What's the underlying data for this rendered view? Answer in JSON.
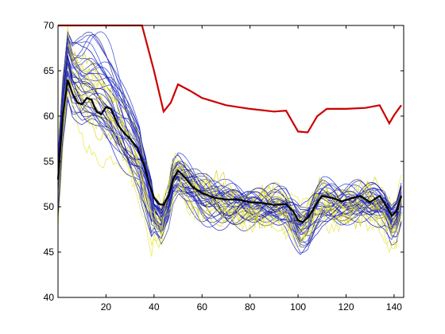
{
  "chart_data": {
    "type": "line",
    "title": "",
    "xlabel": "",
    "ylabel": "",
    "xlim": [
      0,
      144
    ],
    "ylim": [
      40,
      70
    ],
    "xticks": [
      20,
      40,
      60,
      80,
      100,
      120,
      140
    ],
    "yticks": [
      40,
      45,
      50,
      55,
      60,
      65,
      70
    ],
    "grid": false,
    "legend": "none",
    "axis_color": "#000000",
    "background": "#ffffff",
    "highlight_series": [
      {
        "color": "#cc0000",
        "x": [
          0,
          3,
          6,
          10,
          15,
          20,
          25,
          30,
          35,
          40,
          44,
          47,
          50,
          55,
          60,
          70,
          80,
          90,
          95,
          100,
          104,
          108,
          112,
          120,
          128,
          134,
          138,
          140,
          143
        ],
        "y": [
          70,
          70,
          70,
          70,
          70,
          70,
          70,
          70,
          70,
          65,
          60.5,
          61.5,
          63.5,
          62.8,
          62,
          61.2,
          60.8,
          60.5,
          60.6,
          58.3,
          58.2,
          60,
          60.8,
          60.8,
          60.9,
          61.2,
          59.2,
          60.1,
          61.2
        ]
      },
      {
        "color": "#000000",
        "x": [
          0,
          2,
          4,
          6,
          8,
          10,
          12,
          14,
          16,
          18,
          20,
          22,
          25,
          28,
          30,
          33,
          36,
          38,
          40,
          42,
          44,
          46,
          48,
          50,
          53,
          56,
          60,
          65,
          70,
          75,
          80,
          85,
          90,
          95,
          98,
          100,
          102,
          104,
          106,
          108,
          110,
          114,
          118,
          122,
          126,
          130,
          134,
          137,
          139,
          141,
          143
        ],
        "y": [
          53,
          60,
          64,
          62.5,
          61.5,
          61.3,
          62,
          61.8,
          60.5,
          60.2,
          61,
          60.8,
          59,
          58,
          57.5,
          56.5,
          54.5,
          52.5,
          51,
          50.3,
          50.2,
          51.2,
          53,
          54,
          53.2,
          52.2,
          51.5,
          51,
          50.8,
          50.8,
          50.5,
          50.4,
          50.2,
          50.3,
          49.5,
          48.5,
          48.3,
          48.8,
          49.5,
          50.5,
          51.2,
          51,
          50.6,
          50.9,
          51.2,
          50.5,
          51.2,
          50,
          49,
          49.5,
          51.2
        ]
      }
    ],
    "band_series_count": 46,
    "band_series_colors": [
      "#1f2fd6",
      "#2a3fe8",
      "#0000a0",
      "#30309a",
      "#e6e63a",
      "#d8d020",
      "#40407a",
      "#1c1ccc"
    ]
  }
}
